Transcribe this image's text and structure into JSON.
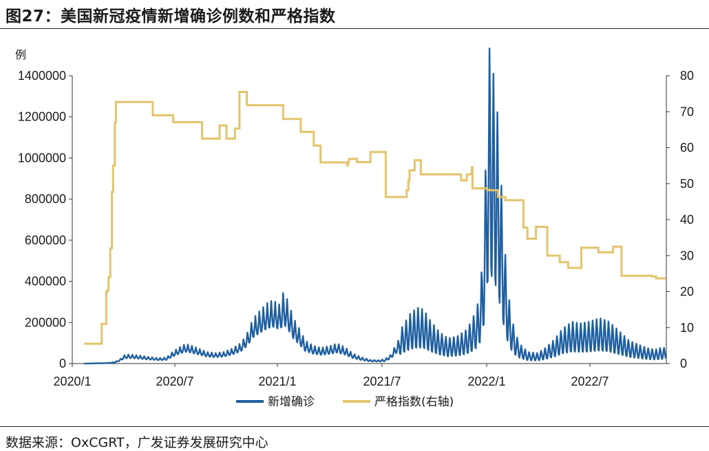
{
  "figure": {
    "title": "图27：美国新冠疫情新增确诊例数和严格指数",
    "source": "数据来源：OxCGRT，广发证券发展研究中心",
    "left_unit": "例"
  },
  "colors": {
    "cases": "#1f5fa0",
    "stringency": "#e3c46c",
    "axis": "#333333"
  },
  "chart_data": {
    "type": "line",
    "title": "",
    "xlabel": "",
    "ylabel": "例",
    "x_ticks": [
      "2020/1",
      "2020/7",
      "2021/1",
      "2021/7",
      "2022/1",
      "2022/7"
    ],
    "y_left": {
      "lim": [
        0,
        1400000
      ],
      "ticks": [
        "0",
        "200000",
        "400000",
        "600000",
        "800000",
        "1000000",
        "1200000",
        "1400000"
      ]
    },
    "y_right": {
      "lim": [
        0,
        80
      ],
      "ticks": [
        "0",
        "10",
        "20",
        "30",
        "40",
        "50",
        "60",
        "70",
        "80"
      ]
    },
    "legend_position": "bottom",
    "series": [
      {
        "name": "新增确诊",
        "axis": "left",
        "style": "line",
        "points": [
          [
            "2020-01-22",
            0
          ],
          [
            "2020-03-01",
            2000
          ],
          [
            "2020-03-15",
            5000
          ],
          [
            "2020-03-25",
            15000
          ],
          [
            "2020-04-01",
            30000
          ],
          [
            "2020-04-10",
            33000
          ],
          [
            "2020-04-25",
            30000
          ],
          [
            "2020-05-15",
            24000
          ],
          [
            "2020-06-01",
            20000
          ],
          [
            "2020-06-15",
            22000
          ],
          [
            "2020-06-25",
            40000
          ],
          [
            "2020-07-05",
            55000
          ],
          [
            "2020-07-18",
            70000
          ],
          [
            "2020-07-25",
            68000
          ],
          [
            "2020-08-10",
            55000
          ],
          [
            "2020-08-25",
            42000
          ],
          [
            "2020-09-10",
            38000
          ],
          [
            "2020-09-25",
            42000
          ],
          [
            "2020-10-10",
            55000
          ],
          [
            "2020-10-25",
            75000
          ],
          [
            "2020-11-05",
            110000
          ],
          [
            "2020-11-15",
            160000
          ],
          [
            "2020-11-28",
            190000
          ],
          [
            "2020-12-10",
            215000
          ],
          [
            "2020-12-20",
            225000
          ],
          [
            "2020-12-31",
            210000
          ],
          [
            "2021-01-08",
            250000
          ],
          [
            "2021-01-15",
            220000
          ],
          [
            "2021-01-25",
            160000
          ],
          [
            "2021-02-05",
            120000
          ],
          [
            "2021-02-15",
            80000
          ],
          [
            "2021-03-01",
            62000
          ],
          [
            "2021-03-15",
            55000
          ],
          [
            "2021-04-01",
            62000
          ],
          [
            "2021-04-12",
            70000
          ],
          [
            "2021-04-25",
            58000
          ],
          [
            "2021-05-10",
            35000
          ],
          [
            "2021-05-25",
            22000
          ],
          [
            "2021-06-10",
            13000
          ],
          [
            "2021-06-25",
            12000
          ],
          [
            "2021-07-05",
            15000
          ],
          [
            "2021-07-15",
            30000
          ],
          [
            "2021-07-25",
            65000
          ],
          [
            "2021-08-05",
            105000
          ],
          [
            "2021-08-20",
            145000
          ],
          [
            "2021-09-01",
            160000
          ],
          [
            "2021-09-12",
            155000
          ],
          [
            "2021-09-25",
            120000
          ],
          [
            "2021-10-10",
            90000
          ],
          [
            "2021-10-25",
            72000
          ],
          [
            "2021-11-10",
            78000
          ],
          [
            "2021-11-25",
            95000
          ],
          [
            "2021-12-05",
            120000
          ],
          [
            "2021-12-15",
            160000
          ],
          [
            "2021-12-22",
            230000
          ],
          [
            "2021-12-28",
            420000
          ],
          [
            "2022-01-03",
            820000
          ],
          [
            "2022-01-07",
            930000
          ],
          [
            "2022-01-11",
            850000
          ],
          [
            "2022-01-16",
            800000
          ],
          [
            "2022-01-21",
            700000
          ],
          [
            "2022-01-26",
            540000
          ],
          [
            "2022-01-31",
            390000
          ],
          [
            "2022-02-05",
            260000
          ],
          [
            "2022-02-12",
            150000
          ],
          [
            "2022-02-20",
            90000
          ],
          [
            "2022-03-01",
            55000
          ],
          [
            "2022-03-15",
            33000
          ],
          [
            "2022-04-01",
            30000
          ],
          [
            "2022-04-15",
            45000
          ],
          [
            "2022-05-01",
            70000
          ],
          [
            "2022-05-15",
            100000
          ],
          [
            "2022-06-01",
            120000
          ],
          [
            "2022-06-15",
            115000
          ],
          [
            "2022-07-01",
            120000
          ],
          [
            "2022-07-20",
            130000
          ],
          [
            "2022-08-05",
            120000
          ],
          [
            "2022-08-25",
            90000
          ],
          [
            "2022-09-10",
            65000
          ],
          [
            "2022-09-25",
            55000
          ],
          [
            "2022-10-10",
            45000
          ],
          [
            "2022-10-25",
            40000
          ],
          [
            "2022-11-05",
            45000
          ],
          [
            "2022-11-13",
            45000
          ]
        ]
      },
      {
        "name": "严格指数(右轴)",
        "axis": "right",
        "style": "step",
        "points": [
          [
            "2020-01-22",
            5.5
          ],
          [
            "2020-02-20",
            5.5
          ],
          [
            "2020-02-22",
            11
          ],
          [
            "2020-03-01",
            20
          ],
          [
            "2020-03-03",
            20.4
          ],
          [
            "2020-03-05",
            24
          ],
          [
            "2020-03-08",
            32
          ],
          [
            "2020-03-11",
            47.7
          ],
          [
            "2020-03-13",
            55
          ],
          [
            "2020-03-16",
            67
          ],
          [
            "2020-03-18",
            72.7
          ],
          [
            "2020-05-20",
            72.7
          ],
          [
            "2020-05-22",
            69
          ],
          [
            "2020-06-25",
            69
          ],
          [
            "2020-06-27",
            67.1
          ],
          [
            "2020-08-15",
            67.1
          ],
          [
            "2020-08-17",
            62.5
          ],
          [
            "2020-09-15",
            62.5
          ],
          [
            "2020-09-17",
            66.2
          ],
          [
            "2020-09-27",
            66.2
          ],
          [
            "2020-09-29",
            62.5
          ],
          [
            "2020-10-12",
            62.5
          ],
          [
            "2020-10-14",
            65.3
          ],
          [
            "2020-10-20",
            65.3
          ],
          [
            "2020-10-22",
            75.5
          ],
          [
            "2020-11-02",
            75.5
          ],
          [
            "2020-11-04",
            71.8
          ],
          [
            "2021-01-05",
            71.8
          ],
          [
            "2021-01-07",
            68
          ],
          [
            "2021-02-05",
            68
          ],
          [
            "2021-02-07",
            64.4
          ],
          [
            "2021-02-28",
            64.4
          ],
          [
            "2021-03-02",
            60.6
          ],
          [
            "2021-03-12",
            60.6
          ],
          [
            "2021-03-14",
            55.9
          ],
          [
            "2021-04-28",
            55.9
          ],
          [
            "2021-04-30",
            55
          ],
          [
            "2021-05-01",
            55.9
          ],
          [
            "2021-05-03",
            56.9
          ],
          [
            "2021-05-15",
            56.9
          ],
          [
            "2021-05-17",
            56
          ],
          [
            "2021-06-08",
            56
          ],
          [
            "2021-06-10",
            58.8
          ],
          [
            "2021-07-05",
            58.8
          ],
          [
            "2021-07-07",
            46.3
          ],
          [
            "2021-08-11",
            46.3
          ],
          [
            "2021-08-13",
            48.2
          ],
          [
            "2021-08-16",
            50.9
          ],
          [
            "2021-08-18",
            53.7
          ],
          [
            "2021-08-25",
            53.7
          ],
          [
            "2021-08-27",
            56.5
          ],
          [
            "2021-09-05",
            56.5
          ],
          [
            "2021-09-07",
            52.6
          ],
          [
            "2021-11-15",
            52.6
          ],
          [
            "2021-11-17",
            50.9
          ],
          [
            "2021-11-25",
            50.9
          ],
          [
            "2021-11-27",
            52.6
          ],
          [
            "2021-12-04",
            52.6
          ],
          [
            "2021-12-06",
            54.6
          ],
          [
            "2021-12-07",
            48.7
          ],
          [
            "2022-01-01",
            48.7
          ],
          [
            "2022-01-02",
            48.2
          ],
          [
            "2022-01-19",
            48.2
          ],
          [
            "2022-01-21",
            46.3
          ],
          [
            "2022-02-01",
            46.3
          ],
          [
            "2022-02-03",
            45.4
          ],
          [
            "2022-03-05",
            45.4
          ],
          [
            "2022-03-07",
            37.8
          ],
          [
            "2022-03-12",
            37.8
          ],
          [
            "2022-03-14",
            34.7
          ],
          [
            "2022-03-27",
            34.7
          ],
          [
            "2022-03-29",
            38
          ],
          [
            "2022-04-16",
            38
          ],
          [
            "2022-04-18",
            30
          ],
          [
            "2022-05-08",
            30
          ],
          [
            "2022-05-10",
            28.2
          ],
          [
            "2022-05-23",
            28.2
          ],
          [
            "2022-05-25",
            26.6
          ],
          [
            "2022-06-15",
            26.6
          ],
          [
            "2022-06-17",
            32.2
          ],
          [
            "2022-07-15",
            32.2
          ],
          [
            "2022-07-17",
            30.9
          ],
          [
            "2022-08-10",
            30.9
          ],
          [
            "2022-08-12",
            32.5
          ],
          [
            "2022-08-25",
            32.5
          ],
          [
            "2022-08-27",
            24.4
          ],
          [
            "2022-10-15",
            24.4
          ],
          [
            "2022-10-20",
            24.2
          ],
          [
            "2022-10-27",
            23.7
          ],
          [
            "2022-11-13",
            23.7
          ]
        ]
      }
    ]
  }
}
